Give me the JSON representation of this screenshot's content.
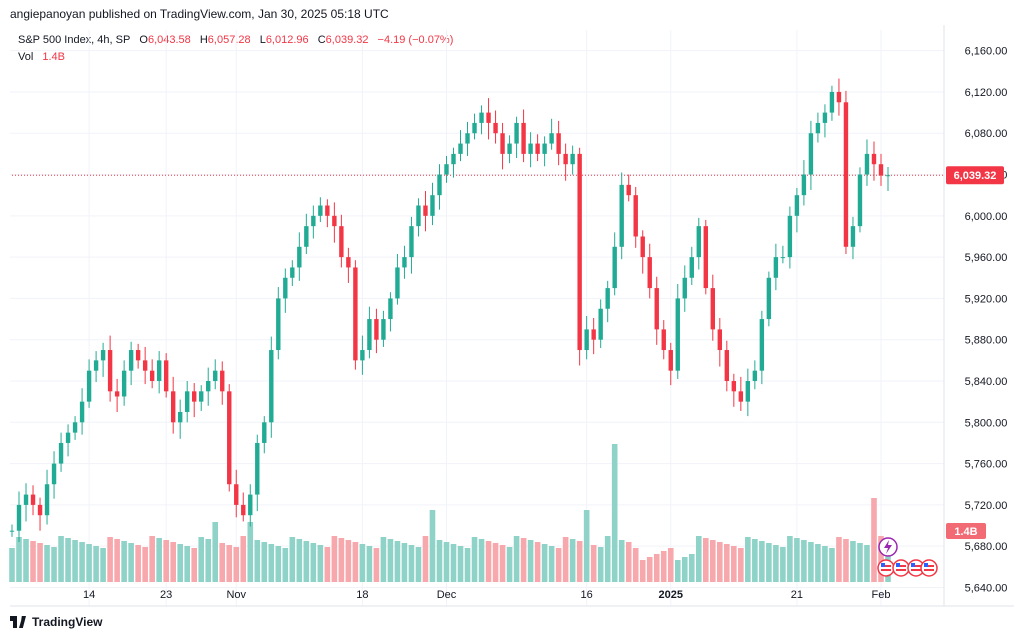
{
  "header": {
    "publisher": "angiepanoyan published on TradingView.com, Jan 30, 2025 05:18 UTC"
  },
  "legend": {
    "symbol": "S&P 500 Index, 4h, SP",
    "o_label": "O",
    "o_value": "6,043.58",
    "h_label": "H",
    "h_value": "6,057.28",
    "l_label": "L",
    "l_value": "6,012.96",
    "c_label": "C",
    "c_value": "6,039.32",
    "change": "−4.19 (−0.07%)",
    "vol_label": "Vol",
    "vol_value": "1.4B"
  },
  "footer": {
    "brand": "TradingView"
  },
  "colors": {
    "up": "#22ab94",
    "down": "#f23645",
    "vol_up": "#8fd3c8",
    "vol_down": "#f7a8ad",
    "grid": "#f0f3fa",
    "text": "#131722"
  },
  "chart_data": {
    "type": "candlestick",
    "y_ticks": [
      "6,160.00",
      "6,120.00",
      "6,080.00",
      "6,040.00",
      "6,000.00",
      "5,960.00",
      "5,920.00",
      "5,880.00",
      "5,840.00",
      "5,800.00",
      "5,760.00",
      "5,720.00",
      "5,680.00",
      "5,640.00"
    ],
    "y_tick_values": [
      6160,
      6120,
      6080,
      6040,
      6000,
      5960,
      5920,
      5880,
      5840,
      5800,
      5760,
      5720,
      5680,
      5640
    ],
    "ylim": [
      5624,
      6180
    ],
    "x_ticks": [
      "14",
      "23",
      "Nov",
      "18",
      "Dec",
      "16",
      "2025",
      "21",
      "Feb"
    ],
    "x_tick_index": [
      11,
      22,
      32,
      50,
      62,
      82,
      94,
      112,
      124
    ],
    "bold_x_ticks": [
      "2025"
    ],
    "last_price_label": "6,039.32",
    "last_price": 6039.32,
    "volume_label": "1.4B",
    "open": [
      5695,
      5695,
      5720,
      5730,
      5720,
      5710,
      5740,
      5760,
      5780,
      5790,
      5800,
      5820,
      5850,
      5860,
      5870,
      5830,
      5825,
      5850,
      5870,
      5860,
      5850,
      5840,
      5860,
      5830,
      5800,
      5810,
      5830,
      5820,
      5830,
      5840,
      5850,
      5830,
      5740,
      5720,
      5710,
      5730,
      5780,
      5800,
      5870,
      5920,
      5940,
      5950,
      5970,
      5990,
      6000,
      6010,
      6000,
      5990,
      5960,
      5950,
      5860,
      5870,
      5900,
      5880,
      5900,
      5920,
      5950,
      5960,
      5990,
      6010,
      6000,
      6020,
      6040,
      6050,
      6060,
      6070,
      6080,
      6090,
      6100,
      6090,
      6080,
      6060,
      6070,
      6090,
      6060,
      6070,
      6060,
      6070,
      6080,
      6060,
      6050,
      6060,
      5870,
      5890,
      5880,
      5910,
      5930,
      5970,
      6030,
      6020,
      5980,
      5960,
      5930,
      5890,
      5870,
      5850,
      5920,
      5940,
      5960,
      5990,
      5930,
      5890,
      5870,
      5840,
      5830,
      5820,
      5840,
      5850,
      5900,
      5940,
      5960,
      5960,
      6000,
      6020,
      6040,
      6080,
      6090,
      6100,
      6120,
      6110,
      5970,
      5990,
      6040,
      6060,
      6050,
      6039
    ]
  }
}
